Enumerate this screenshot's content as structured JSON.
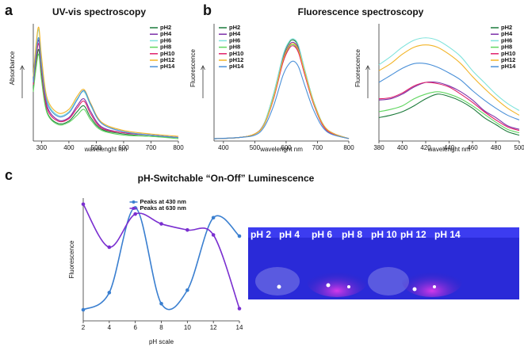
{
  "panel_labels": [
    "a",
    "b",
    "c"
  ],
  "photo": {
    "labels": [
      "pH 2",
      "pH 4",
      "pH 6",
      "pH 8",
      "pH 10",
      "pH 12",
      "pH 14"
    ]
  },
  "chart_data": [
    {
      "type": "line",
      "title": "UV-vis spectroscopy",
      "x_label": "wavelenght nm",
      "y_label": "Absorbance",
      "x": [
        270,
        280,
        290,
        300,
        320,
        360,
        400,
        430,
        455,
        480,
        520,
        600,
        700,
        800
      ],
      "xlim": [
        270,
        800
      ],
      "xticks": [
        300,
        400,
        500,
        600,
        700,
        800
      ],
      "ylim": [
        0,
        1
      ],
      "legend": "upper right",
      "series": [
        {
          "name": "pH2",
          "color": "#1b7a3a",
          "values": [
            0.45,
            0.65,
            0.78,
            0.55,
            0.25,
            0.15,
            0.17,
            0.25,
            0.3,
            0.2,
            0.1,
            0.06,
            0.04,
            0.03
          ]
        },
        {
          "name": "pH4",
          "color": "#7b2fa8",
          "values": [
            0.5,
            0.72,
            0.86,
            0.62,
            0.3,
            0.18,
            0.2,
            0.3,
            0.36,
            0.25,
            0.12,
            0.07,
            0.05,
            0.03
          ]
        },
        {
          "name": "pH6",
          "color": "#7fe3dc",
          "values": [
            0.55,
            0.8,
            0.95,
            0.7,
            0.35,
            0.22,
            0.25,
            0.36,
            0.42,
            0.3,
            0.15,
            0.08,
            0.05,
            0.03
          ]
        },
        {
          "name": "pH8",
          "color": "#5fd65f",
          "values": [
            0.42,
            0.62,
            0.74,
            0.52,
            0.24,
            0.14,
            0.16,
            0.22,
            0.27,
            0.18,
            0.09,
            0.05,
            0.04,
            0.02
          ]
        },
        {
          "name": "pH10",
          "color": "#e0206a",
          "values": [
            0.48,
            0.7,
            0.83,
            0.6,
            0.28,
            0.17,
            0.19,
            0.28,
            0.34,
            0.23,
            0.11,
            0.07,
            0.05,
            0.03
          ]
        },
        {
          "name": "pH12",
          "color": "#f2b427",
          "values": [
            0.55,
            0.82,
            0.97,
            0.72,
            0.37,
            0.24,
            0.27,
            0.38,
            0.44,
            0.32,
            0.16,
            0.09,
            0.06,
            0.04
          ]
        },
        {
          "name": "pH14",
          "color": "#4a90d8",
          "values": [
            0.5,
            0.74,
            0.88,
            0.64,
            0.33,
            0.21,
            0.24,
            0.35,
            0.43,
            0.31,
            0.15,
            0.08,
            0.05,
            0.03
          ]
        }
      ]
    },
    {
      "type": "line",
      "title": "Fluorescence spectroscopy",
      "x_label": "wavelenght nm",
      "y_label": "Fluorescence",
      "x": [
        370,
        450,
        500,
        530,
        560,
        590,
        610,
        625,
        640,
        660,
        690,
        730,
        800
      ],
      "xlim": [
        370,
        800
      ],
      "xticks": [
        400,
        500,
        600,
        700,
        800
      ],
      "ylim": [
        0,
        1
      ],
      "legend": "upper left",
      "series": [
        {
          "name": "pH2",
          "color": "#1b7a3a",
          "values": [
            0.02,
            0.03,
            0.06,
            0.15,
            0.4,
            0.72,
            0.84,
            0.86,
            0.8,
            0.6,
            0.32,
            0.1,
            0.02
          ]
        },
        {
          "name": "pH4",
          "color": "#7b2fa8",
          "values": [
            0.02,
            0.03,
            0.06,
            0.15,
            0.38,
            0.7,
            0.82,
            0.84,
            0.78,
            0.58,
            0.3,
            0.1,
            0.02
          ]
        },
        {
          "name": "pH6",
          "color": "#7fe3dc",
          "values": [
            0.02,
            0.03,
            0.06,
            0.15,
            0.4,
            0.73,
            0.85,
            0.87,
            0.81,
            0.6,
            0.32,
            0.1,
            0.02
          ]
        },
        {
          "name": "pH8",
          "color": "#5fd65f",
          "values": [
            0.02,
            0.03,
            0.06,
            0.14,
            0.37,
            0.68,
            0.8,
            0.82,
            0.76,
            0.57,
            0.3,
            0.09,
            0.02
          ]
        },
        {
          "name": "pH10",
          "color": "#e0206a",
          "values": [
            0.02,
            0.03,
            0.06,
            0.14,
            0.36,
            0.67,
            0.79,
            0.81,
            0.75,
            0.56,
            0.3,
            0.09,
            0.02
          ]
        },
        {
          "name": "pH12",
          "color": "#f2b427",
          "values": [
            0.02,
            0.03,
            0.06,
            0.14,
            0.37,
            0.69,
            0.81,
            0.83,
            0.77,
            0.58,
            0.31,
            0.1,
            0.02
          ]
        },
        {
          "name": "pH14",
          "color": "#4a90d8",
          "values": [
            0.02,
            0.03,
            0.05,
            0.12,
            0.3,
            0.56,
            0.66,
            0.68,
            0.63,
            0.47,
            0.25,
            0.08,
            0.02
          ]
        }
      ]
    },
    {
      "type": "line",
      "x_label": "wavelenght nm",
      "y_label": "Fluorescence",
      "x": [
        380,
        390,
        400,
        410,
        420,
        430,
        440,
        450,
        460,
        470,
        480,
        490,
        500
      ],
      "xlim": [
        380,
        500
      ],
      "xticks": [
        380,
        400,
        420,
        440,
        460,
        480,
        500
      ],
      "ylim": [
        0,
        1
      ],
      "legend": "upper right",
      "series": [
        {
          "name": "pH2",
          "color": "#1b7a3a",
          "values": [
            0.2,
            0.22,
            0.25,
            0.3,
            0.36,
            0.4,
            0.38,
            0.34,
            0.28,
            0.2,
            0.14,
            0.08,
            0.05
          ]
        },
        {
          "name": "pH4",
          "color": "#7b2fa8",
          "values": [
            0.35,
            0.36,
            0.4,
            0.46,
            0.5,
            0.5,
            0.47,
            0.42,
            0.35,
            0.26,
            0.2,
            0.13,
            0.1
          ]
        },
        {
          "name": "pH6",
          "color": "#7fe3dc",
          "values": [
            0.65,
            0.72,
            0.8,
            0.86,
            0.88,
            0.86,
            0.8,
            0.72,
            0.6,
            0.5,
            0.4,
            0.32,
            0.26
          ]
        },
        {
          "name": "pH8",
          "color": "#5fd65f",
          "values": [
            0.25,
            0.27,
            0.3,
            0.36,
            0.4,
            0.42,
            0.4,
            0.36,
            0.3,
            0.23,
            0.16,
            0.1,
            0.07
          ]
        },
        {
          "name": "pH10",
          "color": "#e0206a",
          "values": [
            0.36,
            0.37,
            0.41,
            0.47,
            0.5,
            0.49,
            0.46,
            0.4,
            0.33,
            0.25,
            0.18,
            0.12,
            0.09
          ]
        },
        {
          "name": "pH12",
          "color": "#f2b427",
          "values": [
            0.6,
            0.66,
            0.74,
            0.8,
            0.82,
            0.8,
            0.74,
            0.66,
            0.55,
            0.45,
            0.36,
            0.28,
            0.22
          ]
        },
        {
          "name": "pH14",
          "color": "#4a90d8",
          "values": [
            0.5,
            0.56,
            0.62,
            0.66,
            0.66,
            0.63,
            0.58,
            0.52,
            0.43,
            0.35,
            0.28,
            0.22,
            0.18
          ]
        }
      ]
    },
    {
      "type": "line",
      "title": "pH-Switchable “On-Off” Luminescence",
      "x_label": "pH scale",
      "y_label": "Fluorescence",
      "x": [
        2,
        4,
        6,
        8,
        10,
        12,
        14
      ],
      "xlim": [
        2,
        14
      ],
      "xticks": [
        2,
        4,
        6,
        8,
        10,
        12,
        14
      ],
      "ylim": [
        0,
        1
      ],
      "legend": "upper center",
      "markers": true,
      "series": [
        {
          "name": "Peaks at 430 nm",
          "color": "#3a7fd0",
          "values": [
            0.09,
            0.23,
            0.92,
            0.14,
            0.25,
            0.84,
            0.69
          ]
        },
        {
          "name": "Peaks at 630 nm",
          "color": "#7a2fd0",
          "values": [
            0.95,
            0.6,
            0.87,
            0.79,
            0.74,
            0.7,
            0.1
          ]
        }
      ]
    }
  ]
}
